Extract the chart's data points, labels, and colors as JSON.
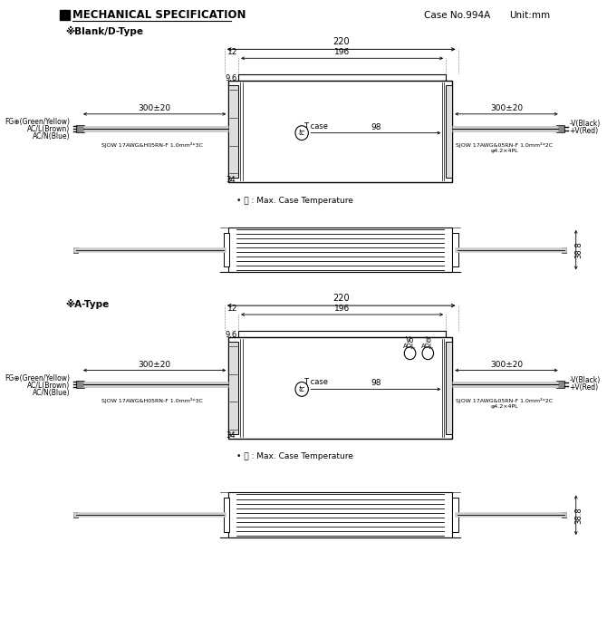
{
  "title": "MECHANICAL SPECIFICATION",
  "case_no": "Case No.994A",
  "unit": "Unit:mm",
  "type1_label": "※Blank/D-Type",
  "type2_label": "※A-Type",
  "bg_color": "#ffffff",
  "line_color": "#000000",
  "dim_220": "220",
  "dim_196": "196",
  "dim_12": "12",
  "dim_9_6": "9.6",
  "dim_98": "98",
  "dim_34": "34",
  "dim_38_8": "38.8",
  "dim_300_20": "300±20",
  "wire_left_label1": "FG⊕(Green/Yellow)",
  "wire_left_label2": "AC/L(Brown)",
  "wire_left_label3": "AC/N(Blue)",
  "wire_left_spec": "SJOW 17AWG&H05RN-F 1.0mm²*3C",
  "wire_right_spec1": "SJOW 17AWG&05RN-F 1.0mm²*2C",
  "wire_right_spec2": "φ4.2×4PL",
  "wire_right_label1": "-V(Black)",
  "wire_right_label2": "+V(Red)",
  "tc_label": "T case",
  "tc_note": "• Ⓣ : Max. Case Temperature"
}
